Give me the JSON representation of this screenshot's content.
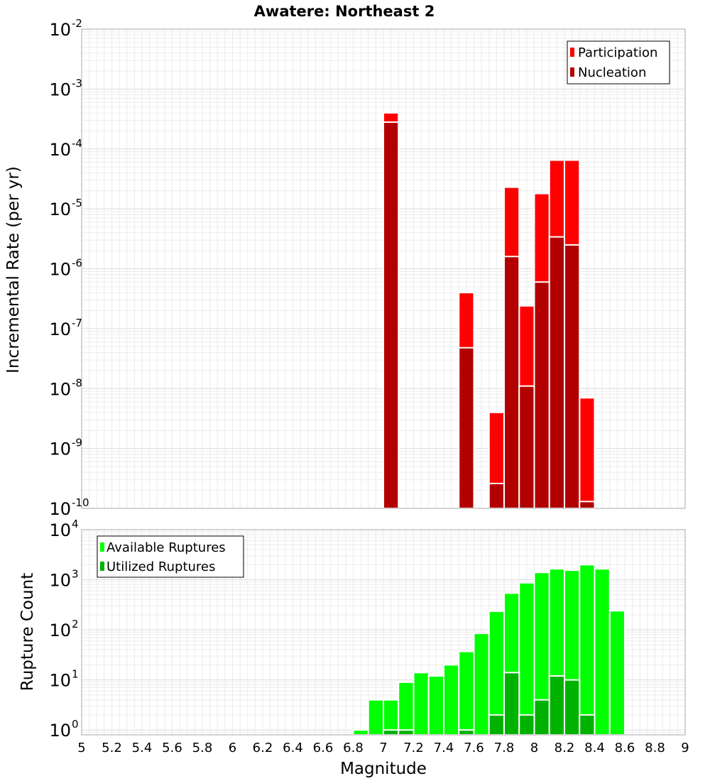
{
  "chart_data": {
    "title": "Awatere: Northeast 2",
    "xlabel": "Magnitude",
    "x_ticks": [
      "5",
      "5.2",
      "5.4",
      "5.6",
      "5.8",
      "6",
      "6.2",
      "6.4",
      "6.6",
      "6.8",
      "7",
      "7.2",
      "7.4",
      "7.6",
      "7.8",
      "8",
      "8.2",
      "8.4",
      "8.6",
      "8.8",
      "9"
    ],
    "xlim": [
      5,
      9
    ],
    "bin_width": 0.1,
    "grid": true,
    "panels": [
      {
        "type": "bar",
        "scale": "log",
        "ylabel": "Incremental Rate (per yr)",
        "ylim": [
          1e-10,
          0.01
        ],
        "y_ticks": [
          {
            "value": 1e-10,
            "base": "10",
            "exp": "-10"
          },
          {
            "value": 1e-09,
            "base": "10",
            "exp": "-9"
          },
          {
            "value": 1e-08,
            "base": "10",
            "exp": "-8"
          },
          {
            "value": 1e-07,
            "base": "10",
            "exp": "-7"
          },
          {
            "value": 1e-06,
            "base": "10",
            "exp": "-6"
          },
          {
            "value": 1e-05,
            "base": "10",
            "exp": "-5"
          },
          {
            "value": 0.0001,
            "base": "10",
            "exp": "-4"
          },
          {
            "value": 0.001,
            "base": "10",
            "exp": "-3"
          },
          {
            "value": 0.01,
            "base": "10",
            "exp": "-2"
          }
        ],
        "legend_position": "top-right",
        "series": [
          {
            "name": "Participation",
            "color": "#ff0000",
            "points": [
              {
                "x": 7.05,
                "y": 0.0004
              },
              {
                "x": 7.55,
                "y": 4e-07
              },
              {
                "x": 7.75,
                "y": 4e-09
              },
              {
                "x": 7.85,
                "y": 2.3e-05
              },
              {
                "x": 7.95,
                "y": 2.4e-07
              },
              {
                "x": 8.05,
                "y": 1.8e-05
              },
              {
                "x": 8.15,
                "y": 6.5e-05
              },
              {
                "x": 8.25,
                "y": 6.5e-05
              },
              {
                "x": 8.35,
                "y": 7e-09
              }
            ]
          },
          {
            "name": "Nucleation",
            "color": "#b20000",
            "points": [
              {
                "x": 7.05,
                "y": 0.00028
              },
              {
                "x": 7.55,
                "y": 4.8e-08
              },
              {
                "x": 7.75,
                "y": 2.6e-10
              },
              {
                "x": 7.85,
                "y": 1.6e-06
              },
              {
                "x": 7.95,
                "y": 1.1e-08
              },
              {
                "x": 8.05,
                "y": 6e-07
              },
              {
                "x": 8.15,
                "y": 3.4e-06
              },
              {
                "x": 8.25,
                "y": 2.5e-06
              },
              {
                "x": 8.35,
                "y": 1.3e-10
              }
            ]
          }
        ]
      },
      {
        "type": "bar",
        "scale": "log",
        "ylabel": "Rupture Count",
        "ylim": [
          0.8,
          10000.0
        ],
        "y_ticks": [
          {
            "value": 1,
            "base": "10",
            "exp": "0"
          },
          {
            "value": 10,
            "base": "10",
            "exp": "1"
          },
          {
            "value": 100,
            "base": "10",
            "exp": "2"
          },
          {
            "value": 1000,
            "base": "10",
            "exp": "3"
          },
          {
            "value": 10000,
            "base": "10",
            "exp": "4"
          }
        ],
        "legend_position": "top-left",
        "series": [
          {
            "name": "Available Ruptures",
            "color": "#00ff00",
            "points": [
              {
                "x": 6.85,
                "y": 1
              },
              {
                "x": 6.95,
                "y": 4
              },
              {
                "x": 7.05,
                "y": 4
              },
              {
                "x": 7.15,
                "y": 9
              },
              {
                "x": 7.25,
                "y": 14
              },
              {
                "x": 7.35,
                "y": 12
              },
              {
                "x": 7.45,
                "y": 20
              },
              {
                "x": 7.55,
                "y": 37
              },
              {
                "x": 7.65,
                "y": 85
              },
              {
                "x": 7.75,
                "y": 235
              },
              {
                "x": 7.85,
                "y": 540
              },
              {
                "x": 7.95,
                "y": 870
              },
              {
                "x": 8.05,
                "y": 1400
              },
              {
                "x": 8.15,
                "y": 1650
              },
              {
                "x": 8.25,
                "y": 1550
              },
              {
                "x": 8.35,
                "y": 2000
              },
              {
                "x": 8.45,
                "y": 1650
              },
              {
                "x": 8.55,
                "y": 240
              }
            ]
          },
          {
            "name": "Utilized Ruptures",
            "color": "#00b200",
            "points": [
              {
                "x": 7.05,
                "y": 1
              },
              {
                "x": 7.15,
                "y": 1
              },
              {
                "x": 7.55,
                "y": 1
              },
              {
                "x": 7.75,
                "y": 2
              },
              {
                "x": 7.85,
                "y": 14
              },
              {
                "x": 7.95,
                "y": 2
              },
              {
                "x": 8.05,
                "y": 4
              },
              {
                "x": 8.15,
                "y": 12
              },
              {
                "x": 8.25,
                "y": 10
              },
              {
                "x": 8.35,
                "y": 2
              }
            ]
          }
        ]
      }
    ]
  }
}
